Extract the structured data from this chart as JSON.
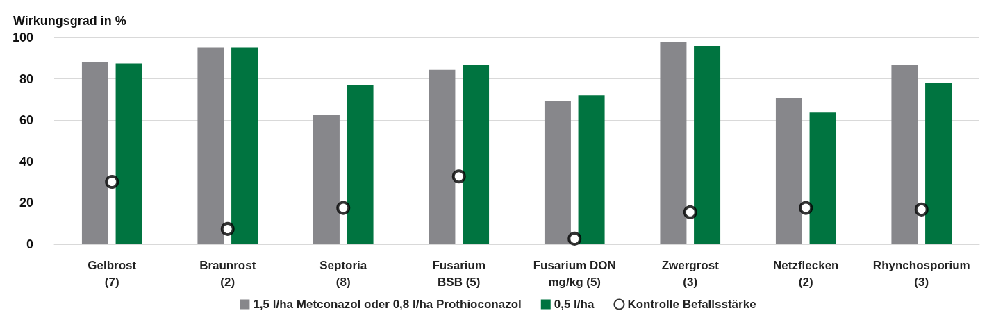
{
  "chart_data": {
    "type": "bar",
    "ylabel": "Wirkungsgrad in %",
    "categories": [
      "Gelbrost\n(7)",
      "Braunrost\n(2)",
      "Septoria\n(8)",
      "Fusarium\nBSB (5)",
      "Fusarium DON\nmg/kg (5)",
      "Zwergrost\n(3)",
      "Netzflecken\n(2)",
      "Rhynchosporium\n(3)"
    ],
    "series": [
      {
        "name": "1,5 l/ha Metconazol oder 0,8 l/ha Prothioconazol",
        "color": "#87878b",
        "values": [
          88.0,
          95.1,
          62.6,
          84.3,
          69.1,
          97.8,
          70.8,
          86.7
        ]
      },
      {
        "name": "0,5 l/ha",
        "color": "#007440",
        "values": [
          87.4,
          95.1,
          77.1,
          86.6,
          72.1,
          95.6,
          63.7,
          78.1
        ]
      },
      {
        "name": "Kontrolle Befallsstärke",
        "type": "scatter",
        "color": "#000000",
        "marker": "circle",
        "x": [
          "Gelbrost\n(7)",
          "Braunrost\n(2)",
          "Septoria\n(8)",
          "Fusarium\nBSB (5)",
          "Fusarium DON\nmg/kg (5)",
          "Zwergrost\n(3)",
          "Netzflecken\n(2)",
          "Rhynchosporium\n(3)"
        ],
        "values": [
          30.2,
          7.4,
          17.6,
          32.8,
          2.7,
          15.5,
          17.6,
          16.8
        ]
      }
    ],
    "ylim": [
      0,
      100
    ],
    "yticks": [
      0,
      20,
      40,
      60,
      80,
      100
    ],
    "grid": "y",
    "legend": "bottom"
  }
}
